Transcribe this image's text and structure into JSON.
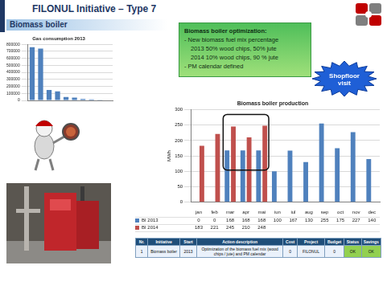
{
  "header": {
    "title": "FILONUL Initiative – Type 7",
    "subtitle": "Biomass boiler"
  },
  "callout": {
    "lines": [
      "Biomass boiler optimization:",
      "- New biomass fuel mix percentage",
      "2013  50% wood chips, 50% jute",
      "2014  10% wood chips, 90 % jute",
      "- PM calendar defined"
    ]
  },
  "badge": "Shopfloor visit",
  "chart_data": [
    {
      "type": "bar",
      "title": "Gas consumption 2013",
      "categories": [
        null,
        null,
        null,
        null,
        null,
        null,
        null,
        null,
        null,
        null
      ],
      "values": [
        760000,
        740000,
        150000,
        130000,
        50000,
        40000,
        20000,
        15000,
        10000,
        6000
      ],
      "color": "#4f81bd",
      "ylim": [
        0,
        800000
      ],
      "yticks": [
        0,
        100000,
        200000,
        300000,
        400000,
        500000,
        600000,
        700000,
        800000
      ],
      "grid": true,
      "tick_labels": "y"
    },
    {
      "type": "bar",
      "title": "Biomass boiler production",
      "y_label": "MWh",
      "categories": [
        "jan",
        "feb",
        "mar",
        "apr",
        "mai",
        "iun",
        "iul",
        "aug",
        "sep",
        "oct",
        "nov",
        "dec"
      ],
      "series": [
        {
          "name": "BI 2013",
          "color": "#4f81bd",
          "values": [
            0,
            0,
            168,
            168,
            168,
            100,
            167,
            130,
            255,
            175,
            227,
            140
          ]
        },
        {
          "name": "BI 2014",
          "color": "#c0504d",
          "values": [
            183,
            221,
            245,
            210,
            248,
            null,
            null,
            null,
            null,
            null,
            null,
            null
          ]
        }
      ],
      "ylim": [
        0,
        300
      ],
      "yticks": [
        0,
        50,
        100,
        150,
        200,
        250,
        300
      ],
      "grid": true
    }
  ],
  "table": {
    "header": [
      "Nr.",
      "Initiative",
      "Start",
      "Action description",
      "Cost",
      "Project",
      "Budget",
      "Status",
      "Savings"
    ],
    "rows": [
      [
        "1",
        "Biomass boiler",
        "2013",
        "Optimization of the biomass fuel mix (wood chips / jute) and PM calendar",
        "0",
        "FILONUL",
        "0",
        "OK",
        "OK"
      ]
    ]
  }
}
